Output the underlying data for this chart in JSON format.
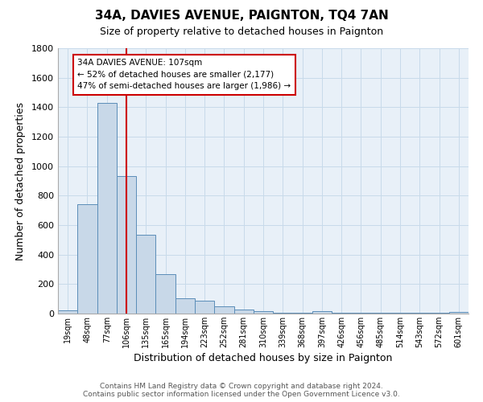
{
  "title": "34A, DAVIES AVENUE, PAIGNTON, TQ4 7AN",
  "subtitle": "Size of property relative to detached houses in Paignton",
  "xlabel": "Distribution of detached houses by size in Paignton",
  "ylabel": "Number of detached properties",
  "footer_line1": "Contains HM Land Registry data © Crown copyright and database right 2024.",
  "footer_line2": "Contains public sector information licensed under the Open Government Licence v3.0.",
  "categories": [
    "19sqm",
    "48sqm",
    "77sqm",
    "106sqm",
    "135sqm",
    "165sqm",
    "194sqm",
    "223sqm",
    "252sqm",
    "281sqm",
    "310sqm",
    "339sqm",
    "368sqm",
    "397sqm",
    "426sqm",
    "456sqm",
    "485sqm",
    "514sqm",
    "543sqm",
    "572sqm",
    "601sqm"
  ],
  "values": [
    20,
    740,
    1430,
    935,
    535,
    265,
    105,
    90,
    47,
    27,
    15,
    8,
    3,
    15,
    3,
    3,
    3,
    3,
    3,
    3,
    13
  ],
  "bar_color": "#c8d8e8",
  "bar_edge_color": "#5b8db8",
  "grid_color": "#c8daea",
  "background_color": "#e8f0f8",
  "vline_color": "#cc0000",
  "annotation_line1": "34A DAVIES AVENUE: 107sqm",
  "annotation_line2": "← 52% of detached houses are smaller (2,177)",
  "annotation_line3": "47% of semi-detached houses are larger (1,986) →",
  "annotation_box_color": "#ffffff",
  "annotation_box_edge": "#cc0000",
  "ylim": [
    0,
    1800
  ],
  "yticks": [
    0,
    200,
    400,
    600,
    800,
    1000,
    1200,
    1400,
    1600,
    1800
  ],
  "property_bar_index": 3,
  "title_fontsize": 11,
  "subtitle_fontsize": 9
}
